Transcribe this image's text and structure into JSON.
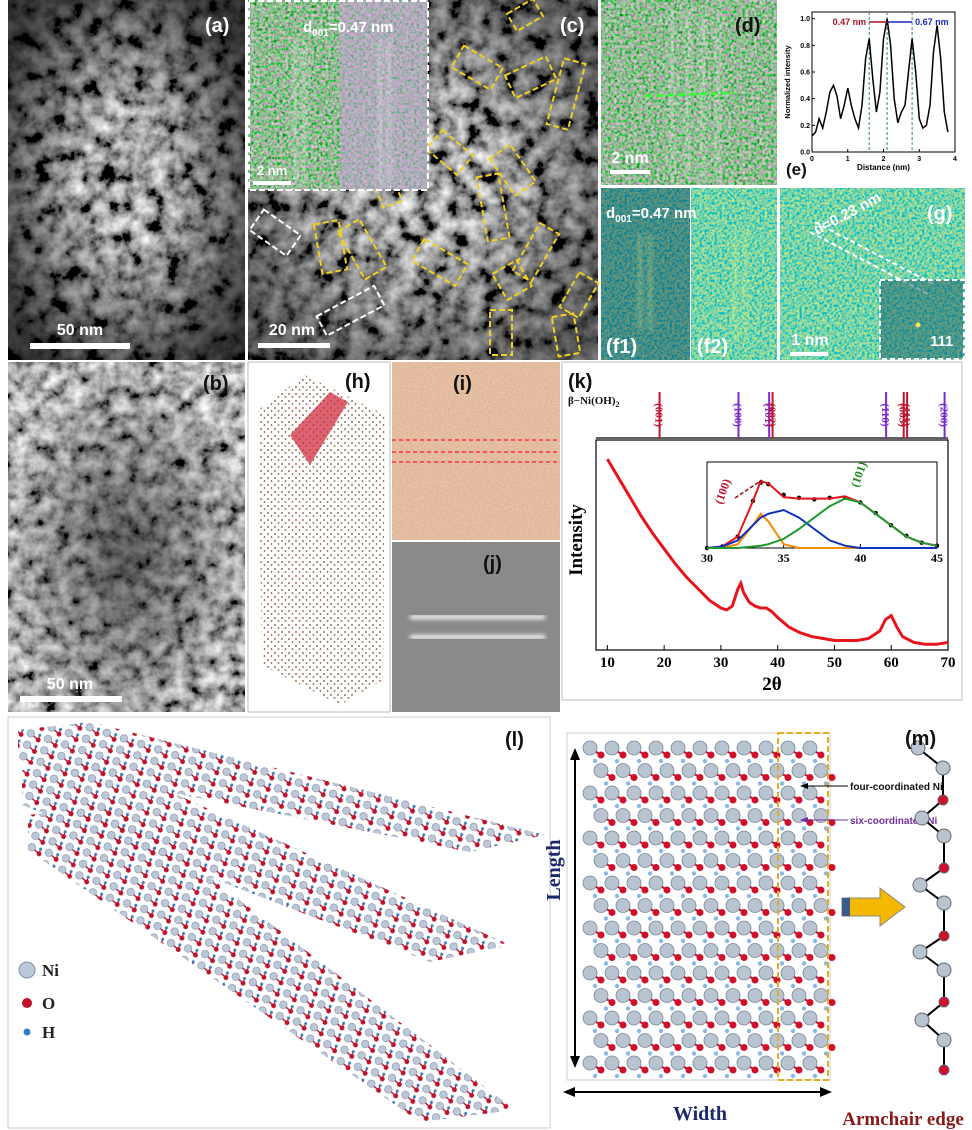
{
  "panels": {
    "a": {
      "label": "(a)",
      "scale_bar": "50 nm"
    },
    "b": {
      "label": "(b)",
      "scale_bar": "50 nm"
    },
    "c": {
      "label": "(c)",
      "scale_bar": "20 nm",
      "inset_scale_bar": "2 nm",
      "inset_spacing": {
        "symbol": "d",
        "subscript": "001",
        "rest": "=0.47 nm"
      }
    },
    "d": {
      "label": "(d)",
      "scale_bar": "2 nm"
    },
    "e": {
      "type": "line",
      "label": "(e)",
      "xlabel": "Distance (nm)",
      "ylabel": "Normalized intensity",
      "xlim": [
        0,
        4
      ],
      "ylim": [
        0,
        1.05
      ],
      "xticks": [
        0,
        1,
        2,
        3,
        4
      ],
      "yticks": [
        {
          "value": 0,
          "label": "0.0"
        },
        0.2,
        0.4,
        0.6,
        0.8,
        {
          "value": 1,
          "label": "1.0"
        }
      ],
      "x": [
        0,
        0.1,
        0.2,
        0.3,
        0.4,
        0.5,
        0.6,
        0.7,
        0.8,
        0.9,
        1.0,
        1.1,
        1.2,
        1.3,
        1.4,
        1.5,
        1.6,
        1.7,
        1.8,
        1.9,
        2.0,
        2.1,
        2.2,
        2.3,
        2.4,
        2.5,
        2.6,
        2.7,
        2.8,
        2.9,
        3.0,
        3.1,
        3.2,
        3.3,
        3.4,
        3.5,
        3.6,
        3.7,
        3.8
      ],
      "values": [
        0.12,
        0.15,
        0.25,
        0.18,
        0.3,
        0.45,
        0.5,
        0.42,
        0.25,
        0.35,
        0.48,
        0.35,
        0.25,
        0.18,
        0.35,
        0.7,
        0.85,
        0.55,
        0.3,
        0.45,
        0.85,
        1.0,
        0.8,
        0.4,
        0.22,
        0.3,
        0.35,
        0.6,
        0.85,
        0.6,
        0.25,
        0.18,
        0.2,
        0.35,
        0.75,
        0.95,
        0.7,
        0.3,
        0.15
      ],
      "color": "#000000",
      "annotations": [
        "0.47 nm",
        "0.67 nm"
      ]
    },
    "f": {
      "labels": [
        "(f1)",
        "(f2)"
      ],
      "spacing": {
        "symbol": "d",
        "subscript": "001",
        "rest": "=0.47 nm"
      }
    },
    "g": {
      "label": "(g)",
      "spacing": "d=0.23 nm",
      "scale_bar": "1 nm",
      "fft_spot": "111"
    },
    "h": {
      "label": "(h)"
    },
    "i": {
      "label": "(i)"
    },
    "j": {
      "label": "(j)"
    },
    "k": {
      "type": "line",
      "label": "(k)",
      "phase": {
        "base": "β−Ni(OH)",
        "subscript": "2"
      },
      "references": [
        {
          "label": "(001)",
          "x": 19.2,
          "color": "#c0152f"
        },
        {
          "label": "(100)",
          "x": 33.1,
          "color": "#7a2bd0"
        },
        {
          "label": "(101)",
          "x": 38.5,
          "color": "#7a2bd0"
        },
        {
          "label": "(002)",
          "x": 39.1,
          "color": "#c0152f"
        },
        {
          "label": "(110)",
          "x": 59.1,
          "color": "#7a2bd0"
        },
        {
          "label": "(003)",
          "x": 62.2,
          "color": "#c0152f"
        },
        {
          "label": "(111)",
          "x": 62.8,
          "color": "#c0152f"
        },
        {
          "label": "(200)",
          "x": 69.4,
          "color": "#7a2bd0"
        }
      ],
      "xlabel": "2θ",
      "ylabel": "Intensity",
      "xlim": [
        8,
        70
      ],
      "ylim": [
        0,
        110
      ],
      "xticks": [
        10,
        20,
        30,
        40,
        50,
        60,
        70
      ],
      "x": [
        10,
        12,
        14,
        16,
        18,
        20,
        22,
        24,
        26,
        28,
        30,
        31,
        32,
        33,
        33.5,
        34,
        35,
        36,
        37,
        38,
        39,
        40,
        42,
        44,
        46,
        48,
        50,
        52,
        54,
        56,
        58,
        59,
        60,
        61,
        62,
        64,
        66,
        68,
        70
      ],
      "values": [
        100,
        90,
        80,
        70,
        61,
        53,
        45,
        38,
        32,
        26,
        22,
        21,
        23,
        32,
        35,
        30,
        25,
        23,
        22,
        22,
        20,
        17,
        12,
        9,
        7,
        6,
        5,
        5,
        5,
        6,
        10,
        16,
        18,
        12,
        7,
        4,
        3,
        3,
        4
      ],
      "color": "#e8141c",
      "inset": {
        "xlim": [
          30,
          45
        ],
        "ylim": [
          0,
          1
        ],
        "xticks": [
          30,
          35,
          40,
          45
        ],
        "x": [
          30,
          31,
          32,
          33,
          33.5,
          34,
          35,
          36,
          37,
          38,
          39,
          40,
          41,
          42,
          43,
          44,
          45
        ],
        "peaks": [
          {
            "label": "(100)",
            "color": "#c0152f"
          },
          {
            "label": "(101)",
            "color": "#1f8a1f"
          }
        ],
        "series": [
          {
            "color": "#000000",
            "marker": "dot",
            "values": [
              0,
              0.02,
              0.15,
              0.62,
              0.86,
              0.84,
              0.7,
              0.66,
              0.64,
              0.66,
              0.66,
              0.6,
              0.46,
              0.3,
              0.16,
              0.07,
              0.03
            ]
          },
          {
            "color": "#e8141c",
            "values": [
              0,
              0.02,
              0.15,
              0.62,
              0.88,
              0.85,
              0.67,
              0.65,
              0.65,
              0.65,
              0.68,
              0.6,
              0.45,
              0.3,
              0.15,
              0.07,
              0.03
            ]
          },
          {
            "color": "#f28c00",
            "values": [
              0,
              0,
              0.05,
              0.3,
              0.45,
              0.35,
              0.05,
              0,
              0,
              0,
              0,
              0,
              0,
              0,
              0,
              0,
              0
            ]
          },
          {
            "color": "#1030c0",
            "values": [
              0,
              0.02,
              0.1,
              0.3,
              0.4,
              0.45,
              0.5,
              0.4,
              0.25,
              0.1,
              0.03,
              0,
              0,
              0,
              0,
              0,
              0
            ]
          },
          {
            "color": "#1f9a2f",
            "values": [
              0,
              0,
              0,
              0.02,
              0.03,
              0.05,
              0.12,
              0.25,
              0.4,
              0.55,
              0.65,
              0.6,
              0.45,
              0.3,
              0.15,
              0.07,
              0.03
            ]
          }
        ]
      }
    },
    "l": {
      "label": "(l)",
      "legend": [
        "Ni",
        "O",
        "H"
      ]
    },
    "m": {
      "label": "(m)",
      "four_coordinated": "four-coordinated Ni",
      "six_coordinated": "six-coordinated Ni",
      "length": "Length",
      "width": "Width",
      "edge": "Armchair edge"
    }
  }
}
